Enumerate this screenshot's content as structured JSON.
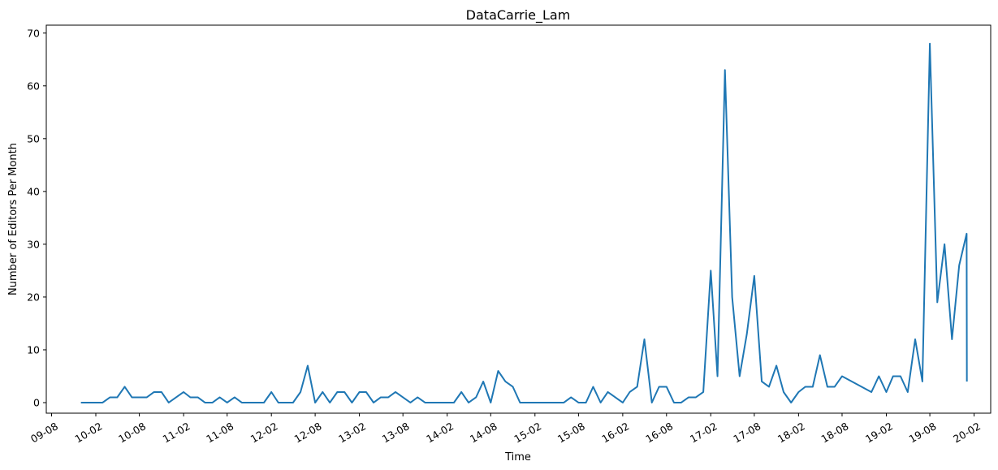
{
  "chart_data": {
    "type": "line",
    "title": "DataCarrie_Lam",
    "xlabel": "Time",
    "ylabel": "Number of Editors Per Month",
    "ylim": [
      -2,
      71.5
    ],
    "yticks": [
      0,
      10,
      20,
      30,
      40,
      50,
      60,
      70
    ],
    "xlim": [
      "2009-07-10",
      "2020-04-10"
    ],
    "xticks": [
      {
        "date": "2009-08-01",
        "label": "09-08"
      },
      {
        "date": "2010-02-01",
        "label": "10-02"
      },
      {
        "date": "2010-08-01",
        "label": "10-08"
      },
      {
        "date": "2011-02-01",
        "label": "11-02"
      },
      {
        "date": "2011-08-01",
        "label": "11-08"
      },
      {
        "date": "2012-02-01",
        "label": "12-02"
      },
      {
        "date": "2012-08-01",
        "label": "12-08"
      },
      {
        "date": "2013-02-01",
        "label": "13-02"
      },
      {
        "date": "2013-08-01",
        "label": "13-08"
      },
      {
        "date": "2014-02-01",
        "label": "14-02"
      },
      {
        "date": "2014-08-01",
        "label": "14-08"
      },
      {
        "date": "2015-02-01",
        "label": "15-02"
      },
      {
        "date": "2015-08-01",
        "label": "15-08"
      },
      {
        "date": "2016-02-01",
        "label": "16-02"
      },
      {
        "date": "2016-08-01",
        "label": "16-08"
      },
      {
        "date": "2017-02-01",
        "label": "17-02"
      },
      {
        "date": "2017-08-01",
        "label": "17-08"
      },
      {
        "date": "2018-02-01",
        "label": "18-02"
      },
      {
        "date": "2018-08-01",
        "label": "18-08"
      },
      {
        "date": "2019-02-01",
        "label": "19-02"
      },
      {
        "date": "2019-08-01",
        "label": "19-08"
      },
      {
        "date": "2020-02-01",
        "label": "20-02"
      }
    ],
    "series": [
      {
        "color": "#1f77b4",
        "points": [
          [
            "2009-12-01",
            0
          ],
          [
            "2010-01-01",
            0
          ],
          [
            "2010-02-01",
            0
          ],
          [
            "2010-03-01",
            0
          ],
          [
            "2010-04-01",
            1
          ],
          [
            "2010-05-01",
            1
          ],
          [
            "2010-06-01",
            3
          ],
          [
            "2010-07-01",
            1
          ],
          [
            "2010-08-01",
            1
          ],
          [
            "2010-09-01",
            1
          ],
          [
            "2010-10-01",
            2
          ],
          [
            "2010-11-01",
            2
          ],
          [
            "2010-12-01",
            0
          ],
          [
            "2011-01-01",
            1
          ],
          [
            "2011-02-01",
            2
          ],
          [
            "2011-03-01",
            1
          ],
          [
            "2011-04-01",
            1
          ],
          [
            "2011-05-01",
            0
          ],
          [
            "2011-06-01",
            0
          ],
          [
            "2011-07-01",
            1
          ],
          [
            "2011-08-01",
            0
          ],
          [
            "2011-09-01",
            1
          ],
          [
            "2011-10-01",
            0
          ],
          [
            "2011-11-01",
            0
          ],
          [
            "2011-12-01",
            0
          ],
          [
            "2012-01-01",
            0
          ],
          [
            "2012-02-01",
            2
          ],
          [
            "2012-03-01",
            0
          ],
          [
            "2012-04-01",
            0
          ],
          [
            "2012-05-01",
            0
          ],
          [
            "2012-06-01",
            2
          ],
          [
            "2012-07-01",
            7
          ],
          [
            "2012-08-01",
            0
          ],
          [
            "2012-09-01",
            2
          ],
          [
            "2012-10-01",
            0
          ],
          [
            "2012-11-01",
            2
          ],
          [
            "2012-12-01",
            2
          ],
          [
            "2013-01-01",
            0
          ],
          [
            "2013-02-01",
            2
          ],
          [
            "2013-03-01",
            2
          ],
          [
            "2013-04-01",
            0
          ],
          [
            "2013-05-01",
            1
          ],
          [
            "2013-06-01",
            1
          ],
          [
            "2013-07-01",
            2
          ],
          [
            "2013-08-01",
            1
          ],
          [
            "2013-09-01",
            0
          ],
          [
            "2013-10-01",
            1
          ],
          [
            "2013-11-01",
            0
          ],
          [
            "2013-12-01",
            0
          ],
          [
            "2014-01-01",
            0
          ],
          [
            "2014-02-01",
            0
          ],
          [
            "2014-03-01",
            0
          ],
          [
            "2014-04-01",
            2
          ],
          [
            "2014-05-01",
            0
          ],
          [
            "2014-06-01",
            1
          ],
          [
            "2014-07-01",
            4
          ],
          [
            "2014-08-01",
            0
          ],
          [
            "2014-09-01",
            6
          ],
          [
            "2014-10-01",
            4
          ],
          [
            "2014-11-01",
            3
          ],
          [
            "2014-12-01",
            0
          ],
          [
            "2015-01-01",
            0
          ],
          [
            "2015-02-01",
            0
          ],
          [
            "2015-03-01",
            0
          ],
          [
            "2015-04-01",
            0
          ],
          [
            "2015-05-01",
            0
          ],
          [
            "2015-06-01",
            0
          ],
          [
            "2015-07-01",
            1
          ],
          [
            "2015-08-01",
            0
          ],
          [
            "2015-09-01",
            0
          ],
          [
            "2015-10-01",
            3
          ],
          [
            "2015-11-01",
            0
          ],
          [
            "2015-12-01",
            2
          ],
          [
            "2016-01-01",
            1
          ],
          [
            "2016-02-01",
            0
          ],
          [
            "2016-03-01",
            2
          ],
          [
            "2016-04-01",
            3
          ],
          [
            "2016-05-01",
            12
          ],
          [
            "2016-06-01",
            0
          ],
          [
            "2016-07-01",
            3
          ],
          [
            "2016-08-01",
            3
          ],
          [
            "2016-09-01",
            0
          ],
          [
            "2016-10-01",
            0
          ],
          [
            "2016-11-01",
            1
          ],
          [
            "2016-12-01",
            1
          ],
          [
            "2017-01-01",
            2
          ],
          [
            "2017-02-01",
            25
          ],
          [
            "2017-03-01",
            5
          ],
          [
            "2017-04-01",
            63
          ],
          [
            "2017-05-01",
            20
          ],
          [
            "2017-06-01",
            5
          ],
          [
            "2017-07-01",
            13
          ],
          [
            "2017-08-01",
            24
          ],
          [
            "2017-09-01",
            4
          ],
          [
            "2017-10-01",
            3
          ],
          [
            "2017-11-01",
            7
          ],
          [
            "2017-12-01",
            2
          ],
          [
            "2018-01-01",
            0
          ],
          [
            "2018-02-01",
            2
          ],
          [
            "2018-03-01",
            3
          ],
          [
            "2018-04-01",
            3
          ],
          [
            "2018-05-01",
            9
          ],
          [
            "2018-06-01",
            3
          ],
          [
            "2018-07-01",
            3
          ],
          [
            "2018-08-01",
            5
          ],
          [
            "2018-12-01",
            2
          ],
          [
            "2019-01-01",
            5
          ],
          [
            "2019-02-01",
            2
          ],
          [
            "2019-03-01",
            5
          ],
          [
            "2019-04-01",
            5
          ],
          [
            "2019-05-01",
            2
          ],
          [
            "2019-06-01",
            12
          ],
          [
            "2019-07-01",
            4
          ],
          [
            "2019-08-01",
            68
          ],
          [
            "2019-09-01",
            19
          ],
          [
            "2019-10-01",
            30
          ],
          [
            "2019-11-01",
            12
          ],
          [
            "2019-12-01",
            26
          ],
          [
            "2020-01-01",
            32
          ],
          [
            "2020-01-02",
            4
          ]
        ]
      }
    ]
  }
}
